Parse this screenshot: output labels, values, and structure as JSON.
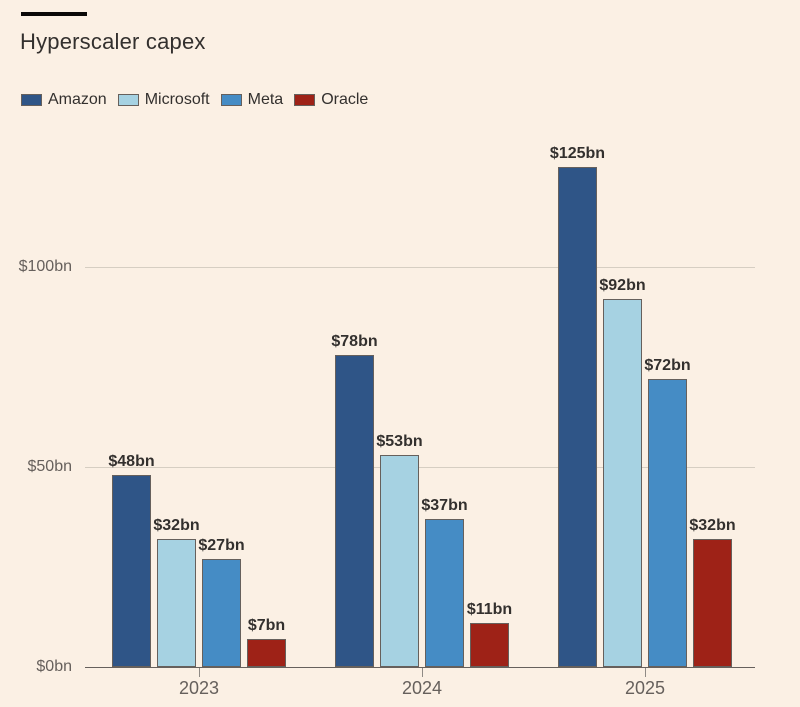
{
  "title": "Hyperscaler capex",
  "colors": {
    "background": "#FBF0E4",
    "title_text": "#33302E",
    "value_label_text": "#33302E",
    "axis_text": "#66605C",
    "gridline": "#D6CEC2",
    "axis_line": "#66605C",
    "bar_border": "#66605C",
    "top_rule": "#0A0807"
  },
  "chart_data": {
    "type": "bar",
    "title": "Hyperscaler capex",
    "categories": [
      "2023",
      "2024",
      "2025"
    ],
    "series": [
      {
        "name": "Amazon",
        "color": "#2F5587",
        "values": [
          48,
          78,
          125
        ],
        "labels": [
          "$48bn",
          "$78bn",
          "$125bn"
        ]
      },
      {
        "name": "Microsoft",
        "color": "#A6D2E2",
        "values": [
          32,
          53,
          92
        ],
        "labels": [
          "$32bn",
          "$53bn",
          "$92bn"
        ]
      },
      {
        "name": "Meta",
        "color": "#458CC5",
        "values": [
          27,
          37,
          72
        ],
        "labels": [
          "$27bn",
          "$37bn",
          "$72bn"
        ]
      },
      {
        "name": "Oracle",
        "color": "#9E2217",
        "values": [
          7,
          11,
          32
        ],
        "labels": [
          "$7bn",
          "$11bn",
          "$32bn"
        ]
      }
    ],
    "y_axis": {
      "ticks": [
        {
          "value": 0,
          "label": "$0bn"
        },
        {
          "value": 50,
          "label": "$50bn"
        },
        {
          "value": 100,
          "label": "$100bn"
        }
      ],
      "max": 130
    },
    "legend_position": "top-left",
    "grid": "horizontal"
  }
}
